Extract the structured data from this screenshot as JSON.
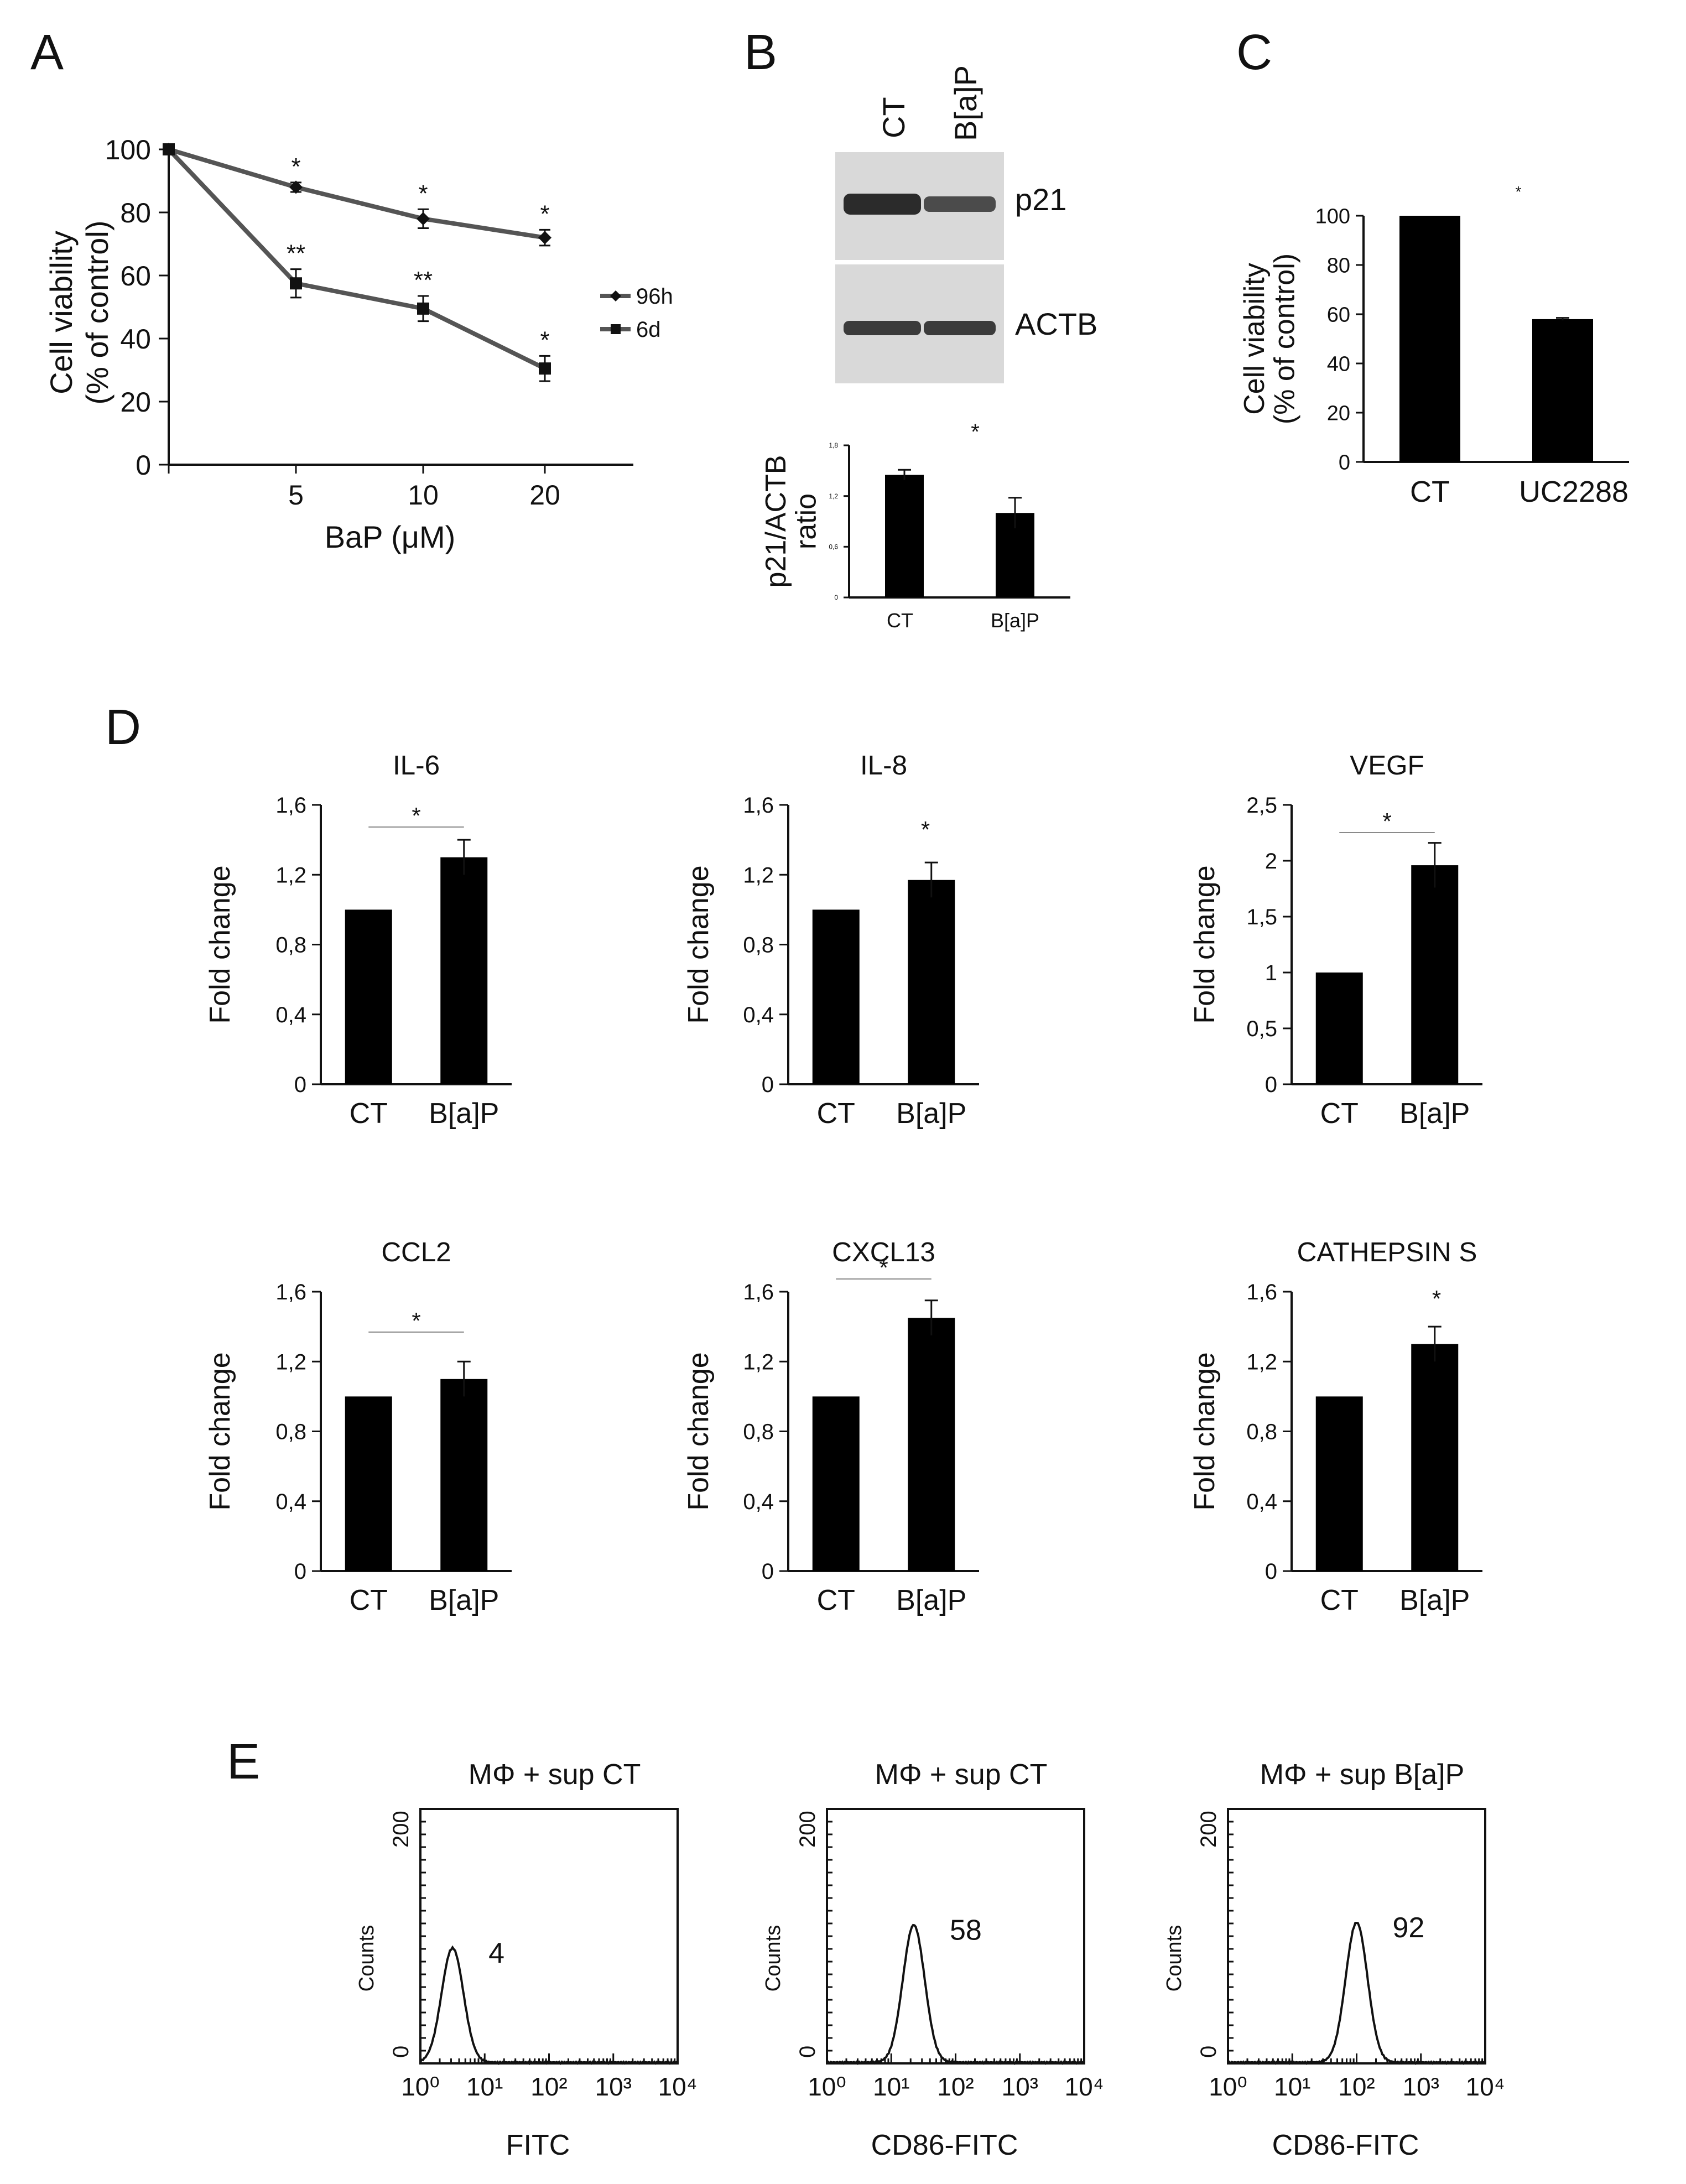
{
  "figure": {
    "panel_labels": {
      "A": "A",
      "B": "B",
      "C": "C",
      "D": "D",
      "E": "E"
    },
    "blot": {
      "lanes": [
        "CT",
        "B[a]P"
      ],
      "bands": [
        "p21",
        "ACTB"
      ]
    }
  },
  "chart_data": [
    {
      "id": "A",
      "type": "line",
      "categories": [
        "",
        "5",
        "10",
        "20"
      ],
      "series": [
        {
          "name": "96h",
          "marker": "diamond",
          "values": [
            100,
            88,
            78,
            72
          ],
          "errors": [
            0,
            1.5,
            3,
            2.5
          ],
          "stars": [
            "",
            "*",
            "*",
            "*"
          ]
        },
        {
          "name": "6d",
          "marker": "square",
          "values": [
            100,
            57.5,
            49.5,
            30.5
          ],
          "errors": [
            0,
            4.5,
            4,
            4
          ],
          "stars": [
            "",
            "**",
            "**",
            "*"
          ]
        }
      ],
      "xlabel": "BaP (μM)",
      "ylabel": "Cell viability",
      "ylabel2": "(% of control)",
      "ylim": [
        0,
        100
      ],
      "yticks": [
        "0",
        "20",
        "40",
        "60",
        "80",
        "100"
      ],
      "legend_position": "right"
    },
    {
      "id": "B",
      "type": "bar",
      "categories": [
        "CT",
        "B[a]P"
      ],
      "values": [
        1.45,
        1.0
      ],
      "errors": [
        0.06,
        0.18
      ],
      "ylabel": "p21/ACTB",
      "ylabel2": "ratio",
      "ylim": [
        0,
        1.8
      ],
      "yticks": [
        "0",
        "0,6",
        "1,2",
        "1,8"
      ],
      "star": "*"
    },
    {
      "id": "C",
      "type": "bar",
      "categories": [
        "CT",
        "UC2288"
      ],
      "values": [
        100,
        58
      ],
      "errors": [
        0,
        0.5
      ],
      "ylabel": "Cell viability",
      "ylabel2": "(% of control)",
      "ylim": [
        0,
        100
      ],
      "yticks": [
        "0",
        "20",
        "40",
        "60",
        "80",
        "100"
      ],
      "star": "*"
    },
    {
      "id": "D1",
      "type": "bar",
      "title": "IL-6",
      "categories": [
        "CT",
        "B[a]P"
      ],
      "values": [
        1.0,
        1.3
      ],
      "errors": [
        0,
        0.1
      ],
      "ylabel": "Fold change",
      "ylim": [
        0,
        1.6
      ],
      "yticks": [
        "0",
        "0,4",
        "0,8",
        "1,2",
        "1,6"
      ],
      "star": "*"
    },
    {
      "id": "D2",
      "type": "bar",
      "title": "IL-8",
      "categories": [
        "CT",
        "B[a]P"
      ],
      "values": [
        1.0,
        1.17
      ],
      "errors": [
        0,
        0.1
      ],
      "ylabel": "Fold change",
      "ylim": [
        0,
        1.6
      ],
      "yticks": [
        "0",
        "0,4",
        "0,8",
        "1,2",
        "1,6"
      ],
      "star": "*"
    },
    {
      "id": "D3",
      "type": "bar",
      "title": "VEGF",
      "categories": [
        "CT",
        "B[a]P"
      ],
      "values": [
        1.0,
        1.96
      ],
      "errors": [
        0,
        0.2
      ],
      "ylabel": "Fold change",
      "ylim": [
        0,
        2.5
      ],
      "yticks": [
        "0",
        "0,5",
        "1",
        "1,5",
        "2",
        "2,5"
      ],
      "star": "*"
    },
    {
      "id": "D4",
      "type": "bar",
      "title": "CCL2",
      "categories": [
        "CT",
        "B[a]P"
      ],
      "values": [
        1.0,
        1.1
      ],
      "errors": [
        0,
        0.1
      ],
      "ylabel": "Fold change",
      "ylim": [
        0,
        1.6
      ],
      "yticks": [
        "0",
        "0,4",
        "0,8",
        "1,2",
        "1,6"
      ],
      "star": "*"
    },
    {
      "id": "D5",
      "type": "bar",
      "title": "CXCL13",
      "categories": [
        "CT",
        "B[a]P"
      ],
      "values": [
        1.0,
        1.45
      ],
      "errors": [
        0,
        0.1
      ],
      "ylabel": "Fold change",
      "ylim": [
        0,
        1.6
      ],
      "yticks": [
        "0",
        "0,4",
        "0,8",
        "1,2",
        "1,6"
      ],
      "star": "*"
    },
    {
      "id": "D6",
      "type": "bar",
      "title": "CATHEPSIN S",
      "categories": [
        "CT",
        "B[a]P"
      ],
      "values": [
        1.0,
        1.3
      ],
      "errors": [
        0,
        0.1
      ],
      "ylabel": "Fold change",
      "ylim": [
        0,
        1.6
      ],
      "yticks": [
        "0",
        "0,4",
        "0,8",
        "1,2",
        "1,6"
      ],
      "star": "*"
    },
    {
      "id": "E1",
      "type": "area",
      "title": "MΦ  + sup CT",
      "annotation": "4",
      "xlabel": "FITC",
      "ylabel": "Counts",
      "ylim": [
        0,
        200
      ],
      "yticks": [
        "0",
        "200"
      ],
      "xlim_log10": [
        0,
        4
      ],
      "xticks": [
        "10⁰",
        "10¹",
        "10²",
        "10³",
        "10⁴"
      ],
      "peak_log10": 0.5,
      "peak_counts": 90
    },
    {
      "id": "E2",
      "type": "area",
      "title": "MΦ  + sup CT",
      "annotation": "58",
      "xlabel": "CD86-FITC",
      "ylabel": "Counts",
      "ylim": [
        0,
        200
      ],
      "yticks": [
        "0",
        "200"
      ],
      "xlim_log10": [
        0,
        4
      ],
      "xticks": [
        "10⁰",
        "10¹",
        "10²",
        "10³",
        "10⁴"
      ],
      "peak_log10": 1.35,
      "peak_counts": 108
    },
    {
      "id": "E3",
      "type": "area",
      "title": "MΦ  + sup B[a]P",
      "annotation": "92",
      "xlabel": "CD86-FITC",
      "ylabel": "Counts",
      "ylim": [
        0,
        200
      ],
      "yticks": [
        "0",
        "200"
      ],
      "xlim_log10": [
        0,
        4
      ],
      "xticks": [
        "10⁰",
        "10¹",
        "10²",
        "10³",
        "10⁴"
      ],
      "peak_log10": 2.0,
      "peak_counts": 110
    }
  ]
}
